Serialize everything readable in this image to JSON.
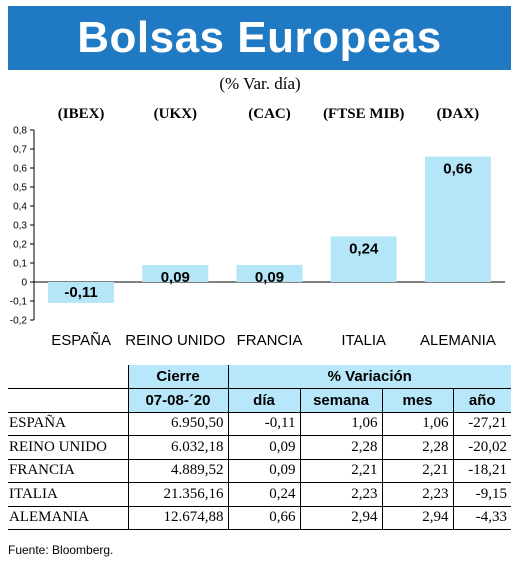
{
  "title": "Bolsas Europeas",
  "subtitle": "(% Var. día)",
  "chart_data": {
    "type": "bar",
    "categories": [
      "ESPAÑA",
      "REINO UNIDO",
      "FRANCIA",
      "ITALIA",
      "ALEMANIA"
    ],
    "codes": [
      "(IBEX)",
      "(UKX)",
      "(CAC)",
      "(FTSE MIB)",
      "(DAX)"
    ],
    "values": [
      -0.11,
      0.09,
      0.09,
      0.24,
      0.66
    ],
    "value_labels": [
      "-0,11",
      "0,09",
      "0,09",
      "0,24",
      "0,66"
    ],
    "ylim": [
      -0.2,
      0.8
    ],
    "yticks": [
      0.8,
      0.7,
      0.6,
      0.5,
      0.4,
      0.3,
      0.2,
      0.1,
      0,
      -0.1,
      -0.2
    ],
    "ytick_labels": [
      "0,8",
      "0,7",
      "0,6",
      "0,5",
      "0,4",
      "0,3",
      "0,2",
      "0,1",
      "0",
      "-0,1",
      "-0,2"
    ],
    "bar_color": "#b5e6f8",
    "grid": false
  },
  "table": {
    "group_headers": [
      "Cierre",
      "% Variación"
    ],
    "date": "07-08-´20",
    "headers": [
      "día",
      "semana",
      "mes",
      "año"
    ],
    "rows": [
      [
        "ESPAÑA",
        "6.950,50",
        "-0,11",
        "1,06",
        "1,06",
        "-27,21"
      ],
      [
        "REINO UNIDO",
        "6.032,18",
        "0,09",
        "2,28",
        "2,28",
        "-20,02"
      ],
      [
        "FRANCIA",
        "4.889,52",
        "0,09",
        "2,21",
        "2,21",
        "-18,21"
      ],
      [
        "ITALIA",
        "21.356,16",
        "0,24",
        "2,23",
        "2,23",
        "-9,15"
      ],
      [
        "ALEMANIA",
        "12.674,88",
        "0,66",
        "2,94",
        "2,94",
        "-4,33"
      ]
    ]
  },
  "source": "Fuente: Bloomberg.",
  "colors": {
    "header_bg": "#1f7ac3",
    "table_header_bg": "#b7e7f8"
  }
}
